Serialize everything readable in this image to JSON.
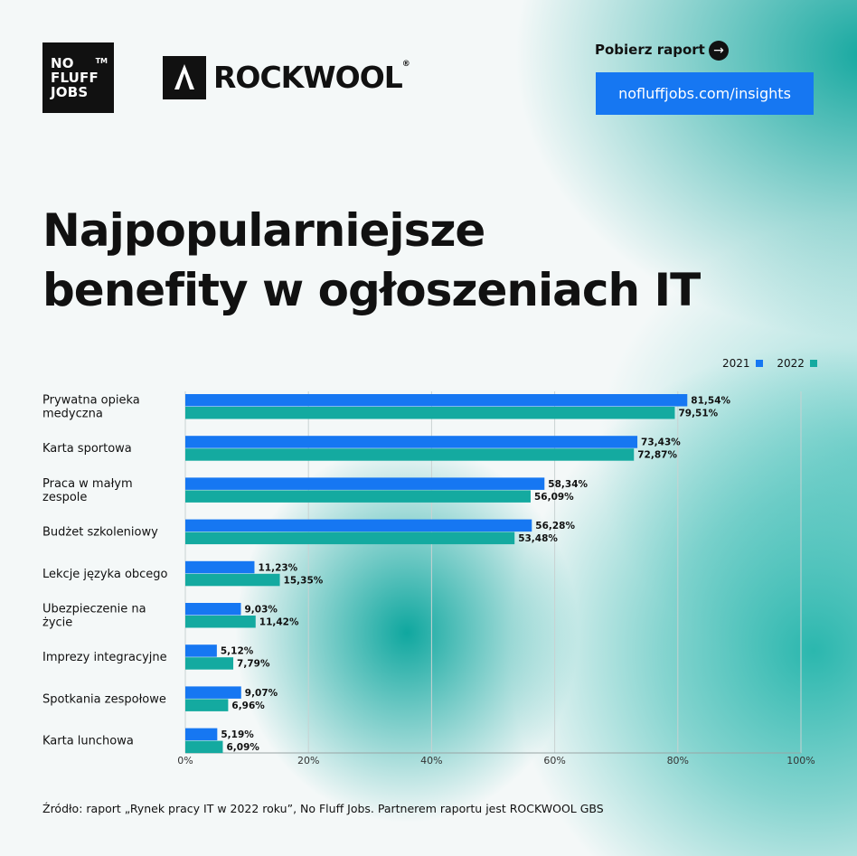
{
  "header": {
    "nfj_logo": [
      "NO",
      "FLUFF",
      "JOBS"
    ],
    "nfj_tm": "TM",
    "rockwool_logo": "ROCKWOOL",
    "download_label": "Pobierz raport",
    "url": "nofluffjobs.com/insights"
  },
  "title_lines": [
    "Najpopularniejsze",
    "benefity w ogłoszeniach IT"
  ],
  "colors": {
    "s2021": "#1677f2",
    "s2022": "#14aaa0",
    "accent_button": "#1677f2"
  },
  "chart_data": {
    "type": "bar",
    "orientation": "horizontal",
    "categories": [
      [
        "Prywatna opieka",
        "medyczna"
      ],
      [
        "Karta sportowa"
      ],
      [
        "Praca w małym",
        "zespole"
      ],
      [
        "Budżet szkoleniowy"
      ],
      [
        "Lekcje języka obcego"
      ],
      [
        "Ubezpieczenie na",
        "życie"
      ],
      [
        "Imprezy integracyjne"
      ],
      [
        "Spotkania zespołowe"
      ],
      [
        "Karta lunchowa"
      ]
    ],
    "series": [
      {
        "name": "2021",
        "color": "#1677f2",
        "values": [
          81.54,
          73.43,
          58.34,
          56.28,
          11.23,
          9.03,
          5.12,
          9.07,
          5.19
        ],
        "labels": [
          "81,54%",
          "73,43%",
          "58,34%",
          "56,28%",
          "11,23%",
          "9,03%",
          "5,12%",
          "9,07%",
          "5,19%"
        ]
      },
      {
        "name": "2022",
        "color": "#14aaa0",
        "values": [
          79.51,
          72.87,
          56.09,
          53.48,
          15.35,
          11.42,
          7.79,
          6.96,
          6.09
        ],
        "labels": [
          "79,51%",
          "72,87%",
          "56,09%",
          "53,48%",
          "15,35%",
          "11,42%",
          "7,79%",
          "6,96%",
          "6,09%"
        ]
      }
    ],
    "xlim": [
      0,
      100
    ],
    "xticks": [
      0,
      20,
      40,
      60,
      80,
      100
    ],
    "xtick_labels": [
      "0%",
      "20%",
      "40%",
      "60%",
      "80%",
      "100%"
    ],
    "grid": true,
    "legend": "top-right"
  },
  "source": "Źródło: raport „Rynek pracy IT w 2022 roku”, No Fluff Jobs. Partnerem raportu jest ROCKWOOL GBS"
}
